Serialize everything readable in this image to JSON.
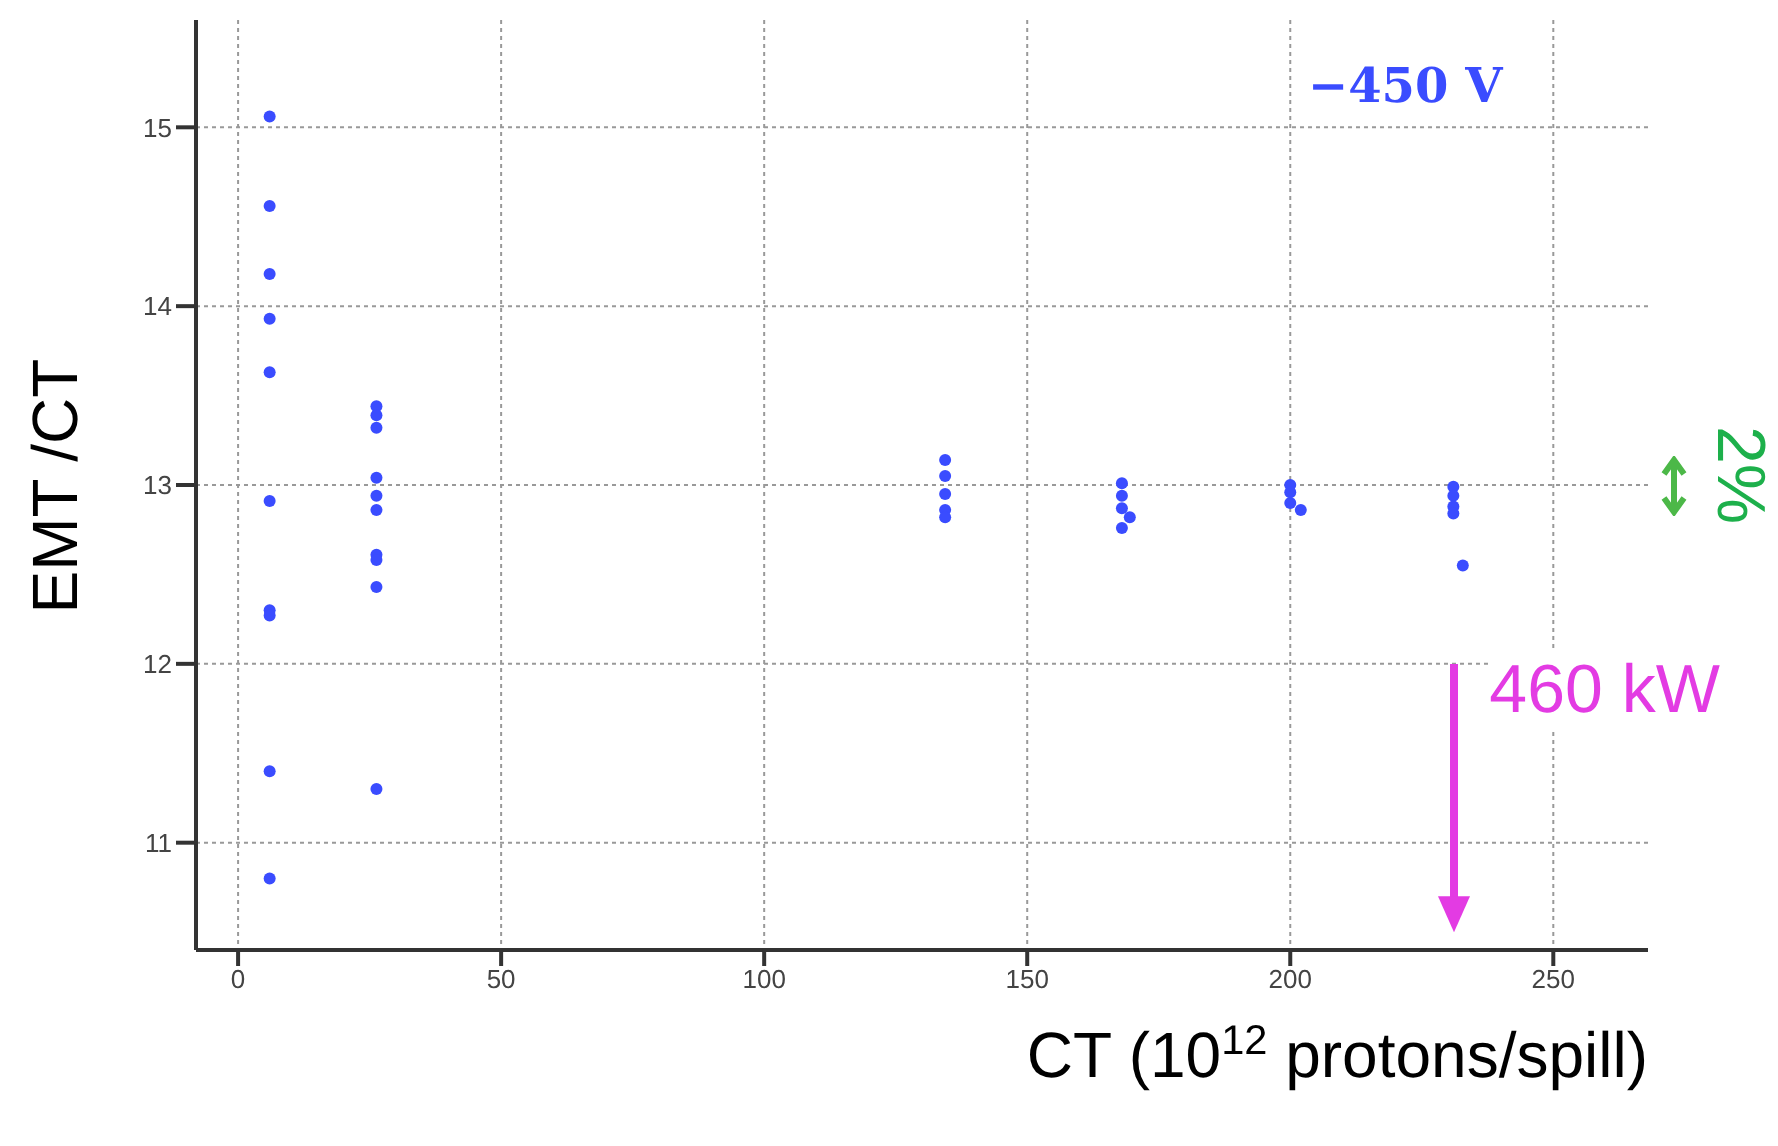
{
  "chart_data": {
    "type": "scatter",
    "xlabel": "CT (10$^{12}$ protons/spill)",
    "ylabel": "EMT /CT",
    "x": [
      6,
      6,
      6,
      6,
      6,
      6,
      6,
      6,
      6,
      6,
      26.3,
      26.3,
      26.3,
      26.3,
      26.3,
      26.3,
      26.3,
      26.3,
      26.3,
      26.3,
      134.4,
      134.4,
      134.4,
      134.4,
      134.4,
      168,
      168,
      168,
      169.5,
      168,
      200,
      200,
      200,
      202,
      231,
      231,
      231,
      231,
      232.8
    ],
    "series": [
      {
        "color": "#3a4cff",
        "values": [
          15.06,
          14.56,
          14.18,
          13.93,
          13.63,
          12.91,
          12.3,
          12.27,
          11.4,
          10.8,
          13.44,
          13.39,
          13.32,
          13.04,
          12.94,
          12.86,
          12.61,
          12.58,
          12.43,
          11.3,
          13.14,
          13.05,
          12.95,
          12.86,
          12.82,
          13.01,
          12.94,
          12.87,
          12.82,
          12.76,
          13.0,
          12.96,
          12.9,
          12.86,
          12.99,
          12.94,
          12.88,
          12.84,
          12.55
        ]
      }
    ],
    "xlim": [
      -8,
      268
    ],
    "xticks": [
      0,
      50,
      100,
      150,
      200,
      250
    ],
    "ylim": [
      10.4,
      15.6
    ],
    "yticks": [
      11,
      12,
      13,
      14,
      15
    ],
    "grid": true,
    "marker": "circle",
    "annotations": [
      "−450 V",
      "2%",
      "460 kW"
    ]
  }
}
